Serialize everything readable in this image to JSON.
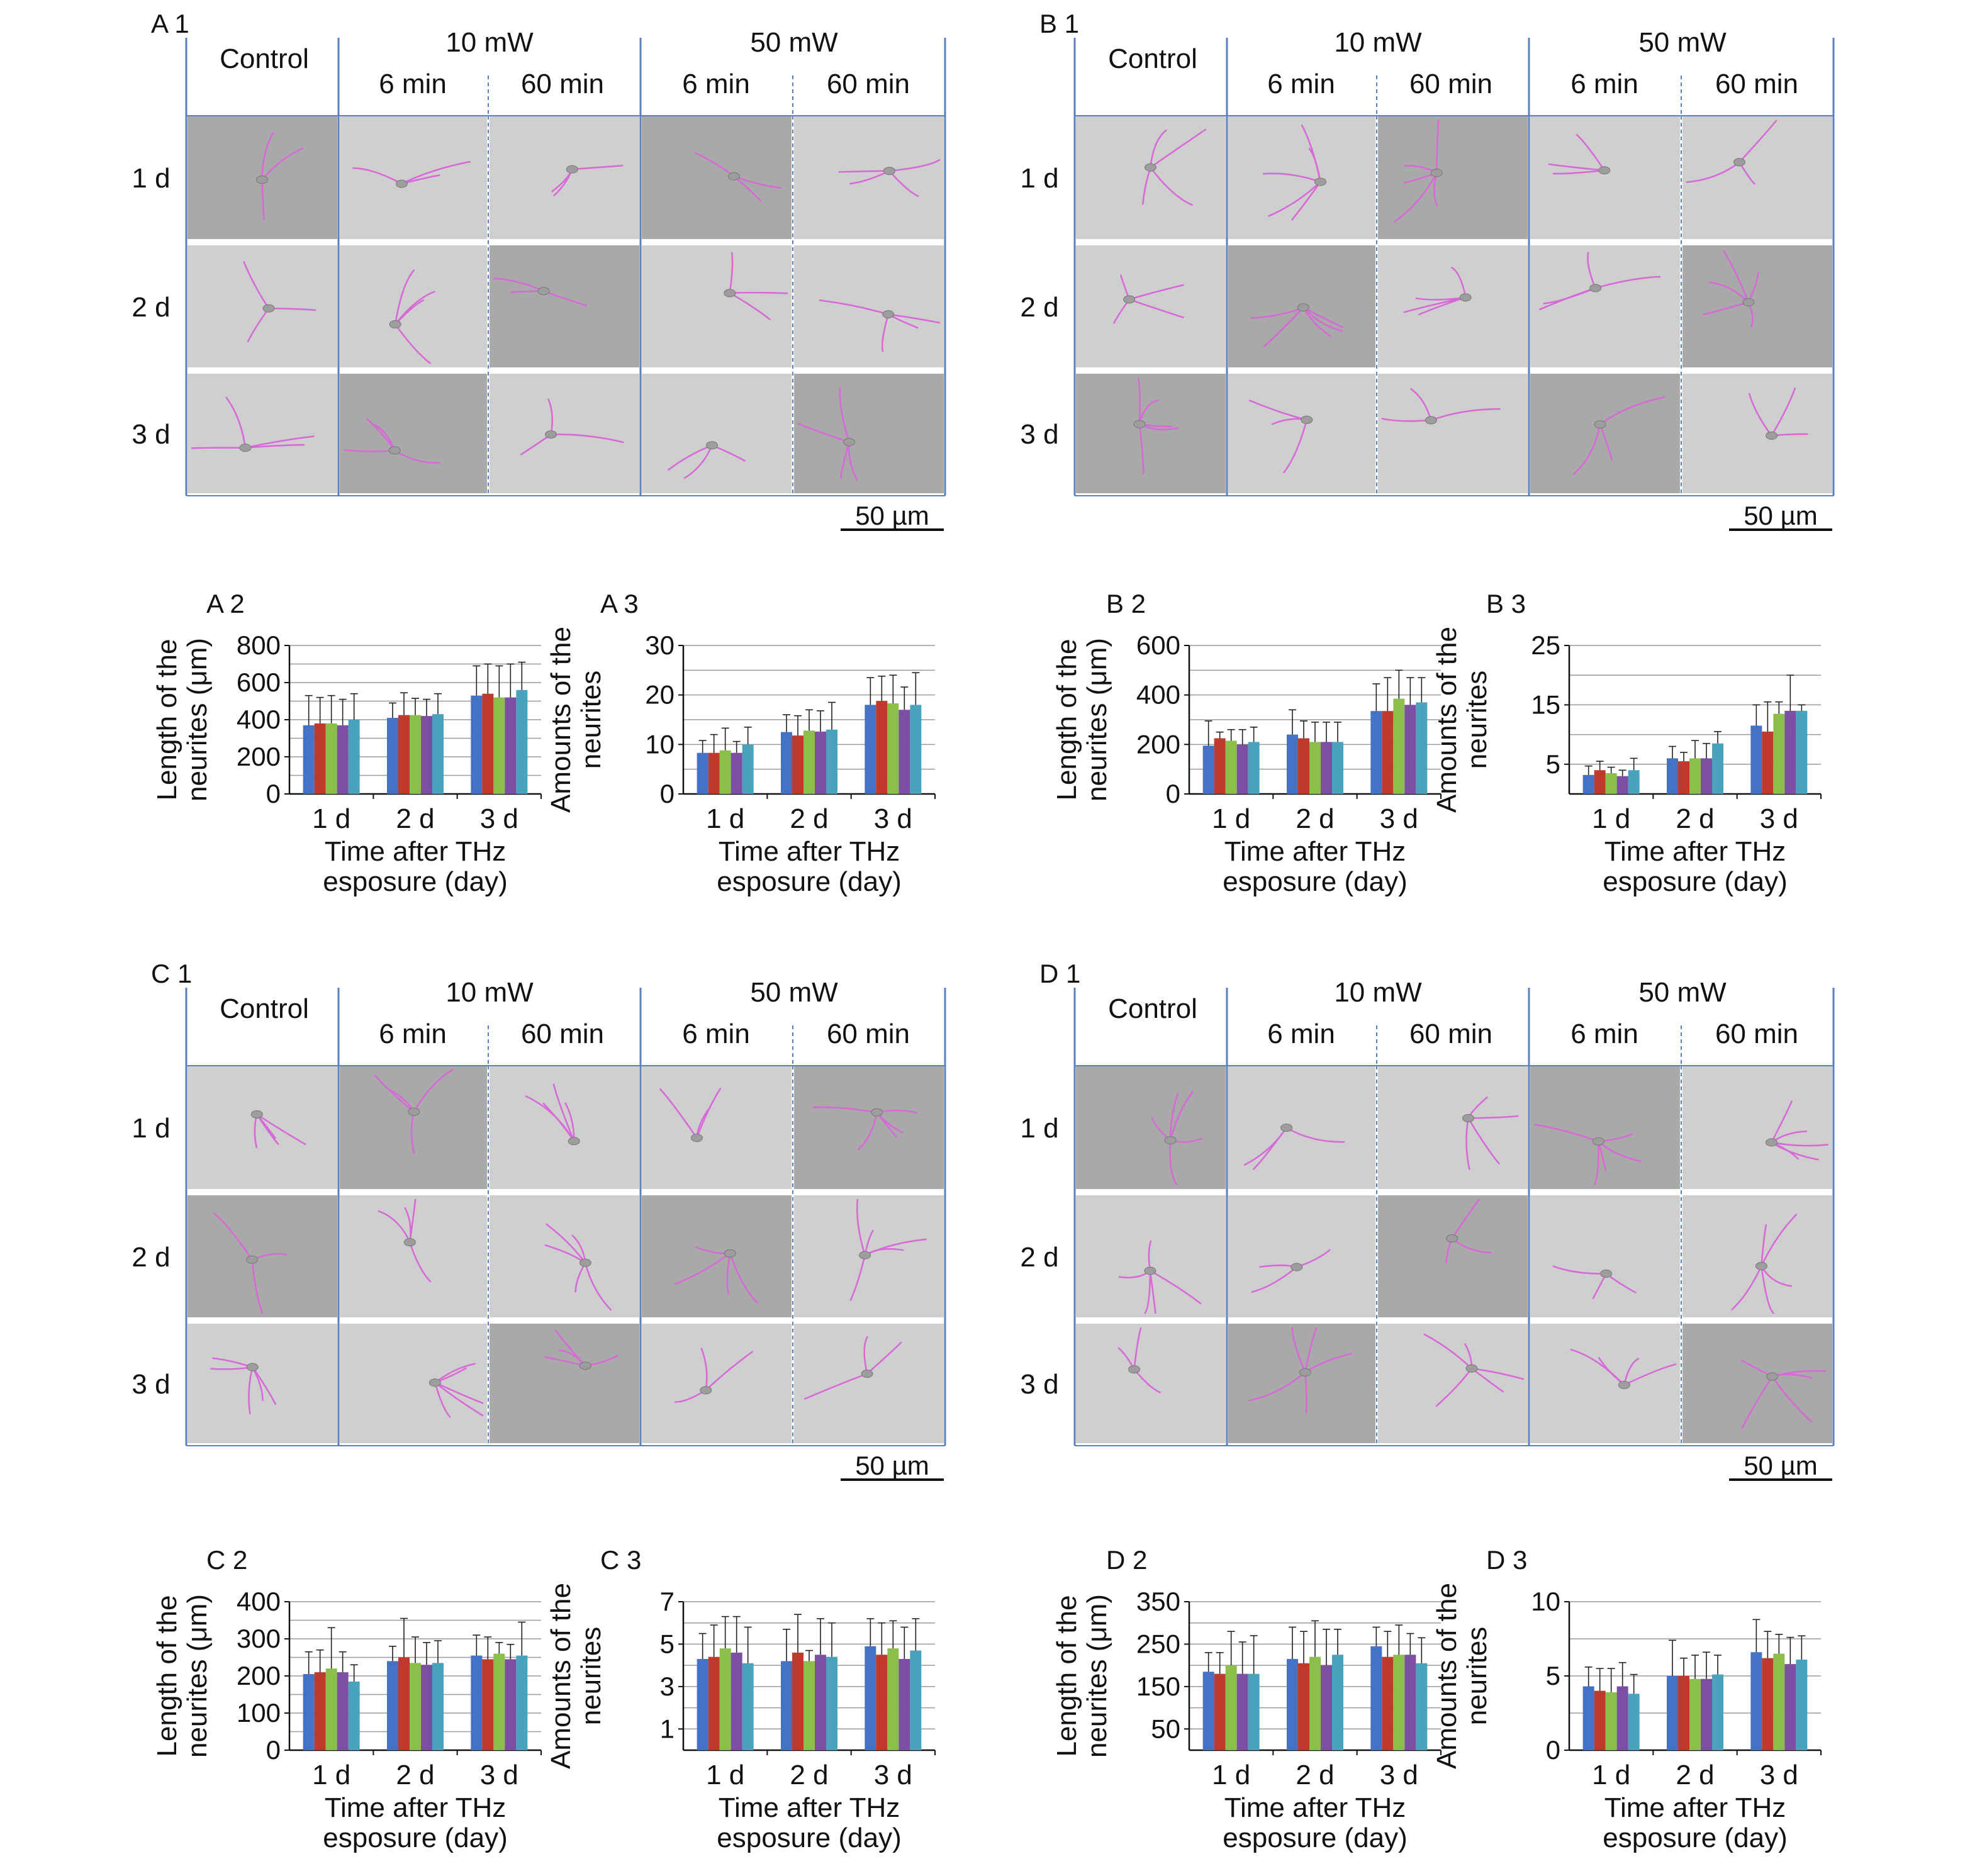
{
  "colors": {
    "series": [
      "#4472c4",
      "#c0392b",
      "#8cbf4a",
      "#7b4fa3",
      "#4aa3bd"
    ],
    "panel_frame": "#5b7fbf",
    "micrograph_light": "#cfcfcf",
    "micrograph_dark": "#a9a9a9",
    "neurite": "#d867d8",
    "grid": "#9a9a9a"
  },
  "micrograph_panels": [
    {
      "label": "A 1",
      "col_control": "Control",
      "group_10": "10 mW",
      "group_50": "50 mW",
      "sub": [
        "6 min",
        "60 min",
        "6 min",
        "60 min"
      ],
      "rows": [
        "1 d",
        "2 d",
        "3 d"
      ],
      "scale_bar": "50 µm"
    },
    {
      "label": "B 1",
      "col_control": "Control",
      "group_10": "10 mW",
      "group_50": "50 mW",
      "sub": [
        "6 min",
        "60 min",
        "6 min",
        "60 min"
      ],
      "rows": [
        "1 d",
        "2 d",
        "3 d"
      ],
      "scale_bar": "50 µm"
    },
    {
      "label": "C 1",
      "col_control": "Control",
      "group_10": "10 mW",
      "group_50": "50 mW",
      "sub": [
        "6 min",
        "60 min",
        "6 min",
        "60 min"
      ],
      "rows": [
        "1 d",
        "2 d",
        "3 d"
      ],
      "scale_bar": "50 µm"
    },
    {
      "label": "D 1",
      "col_control": "Control",
      "group_10": "10 mW",
      "group_50": "50 mW",
      "sub": [
        "6 min",
        "60 min",
        "6 min",
        "60 min"
      ],
      "rows": [
        "1 d",
        "2 d",
        "3 d"
      ],
      "scale_bar": "50 µm"
    }
  ],
  "chart_data": [
    {
      "type": "bar",
      "panel": "A 2",
      "ylabel_lines": [
        "Length of the",
        "neurites (μm)"
      ],
      "xlabel_lines": [
        "Time after THz",
        "esposure (day)"
      ],
      "categories": [
        "1 d",
        "2 d",
        "3 d"
      ],
      "ylim": [
        0,
        800
      ],
      "yticks": [
        "0",
        "200",
        "400",
        "600",
        "800"
      ],
      "grid": true,
      "series": [
        {
          "values": [
            370,
            410,
            530
          ],
          "errors": [
            160,
            80,
            160
          ]
        },
        {
          "values": [
            380,
            425,
            540
          ],
          "errors": [
            140,
            120,
            160
          ]
        },
        {
          "values": [
            380,
            425,
            520
          ],
          "errors": [
            150,
            90,
            170
          ]
        },
        {
          "values": [
            370,
            420,
            520
          ],
          "errors": [
            140,
            90,
            180
          ]
        },
        {
          "values": [
            400,
            430,
            560
          ],
          "errors": [
            140,
            110,
            150
          ]
        }
      ]
    },
    {
      "type": "bar",
      "panel": "A 3",
      "ylabel_lines": [
        "Amounts of the",
        "neurites"
      ],
      "xlabel_lines": [
        "Time after THz",
        "esposure (day)"
      ],
      "categories": [
        "1 d",
        "2 d",
        "3 d"
      ],
      "ylim": [
        0,
        30
      ],
      "yticks": [
        "0",
        "10",
        "20",
        "30"
      ],
      "grid": true,
      "series": [
        {
          "values": [
            8.3,
            12.5,
            18.0
          ],
          "errors": [
            2.5,
            3.5,
            5.5
          ]
        },
        {
          "values": [
            8.3,
            11.8,
            18.8
          ],
          "errors": [
            3.7,
            4.0,
            5.0
          ]
        },
        {
          "values": [
            8.8,
            12.8,
            18.3
          ],
          "errors": [
            4.5,
            4.2,
            5.7
          ]
        },
        {
          "values": [
            8.3,
            12.6,
            17.0
          ],
          "errors": [
            2.3,
            4.2,
            4.6
          ]
        },
        {
          "values": [
            10.0,
            13.0,
            18.0
          ],
          "errors": [
            3.5,
            5.5,
            6.5
          ]
        }
      ]
    },
    {
      "type": "bar",
      "panel": "B 2",
      "ylabel_lines": [
        "Length of the",
        "neurites (μm)"
      ],
      "xlabel_lines": [
        "Time after THz",
        "esposure (day)"
      ],
      "categories": [
        "1 d",
        "2 d",
        "3 d"
      ],
      "ylim": [
        0,
        600
      ],
      "yticks": [
        "0",
        "200",
        "400",
        "600"
      ],
      "grid": true,
      "series": [
        {
          "values": [
            195,
            240,
            335
          ],
          "errors": [
            100,
            100,
            110
          ]
        },
        {
          "values": [
            225,
            225,
            335
          ],
          "errors": [
            25,
            70,
            135
          ]
        },
        {
          "values": [
            215,
            210,
            385
          ],
          "errors": [
            45,
            80,
            115
          ]
        },
        {
          "values": [
            200,
            210,
            360
          ],
          "errors": [
            60,
            80,
            110
          ]
        },
        {
          "values": [
            210,
            210,
            370
          ],
          "errors": [
            60,
            80,
            100
          ]
        }
      ]
    },
    {
      "type": "bar",
      "panel": "B 3",
      "ylabel_lines": [
        "Amounts of the",
        "neurites"
      ],
      "xlabel_lines": [
        "Time after THz",
        "esposure (day)"
      ],
      "categories": [
        "1 d",
        "2 d",
        "3 d"
      ],
      "ylim": [
        0,
        25
      ],
      "yticks": [
        "5",
        "15",
        "25"
      ],
      "ytick_values": [
        5,
        15,
        25
      ],
      "grid": true,
      "series": [
        {
          "values": [
            3.2,
            6.0,
            11.5
          ],
          "errors": [
            1.5,
            2.0,
            3.5
          ]
        },
        {
          "values": [
            4.0,
            5.5,
            10.5
          ],
          "errors": [
            1.5,
            1.5,
            5.0
          ]
        },
        {
          "values": [
            3.5,
            6.0,
            13.5
          ],
          "errors": [
            1.0,
            3.0,
            2.0
          ]
        },
        {
          "values": [
            3.0,
            6.0,
            14.0
          ],
          "errors": [
            1.0,
            2.5,
            6.0
          ]
        },
        {
          "values": [
            4.0,
            8.5,
            14.0
          ],
          "errors": [
            2.0,
            2.0,
            1.0
          ]
        }
      ]
    },
    {
      "type": "bar",
      "panel": "C 2",
      "ylabel_lines": [
        "Length of the",
        "neurites (μm)"
      ],
      "xlabel_lines": [
        "Time after THz",
        "esposure (day)"
      ],
      "categories": [
        "1 d",
        "2 d",
        "3 d"
      ],
      "ylim": [
        0,
        400
      ],
      "yticks": [
        "0",
        "100",
        "200",
        "300",
        "400"
      ],
      "grid": true,
      "series": [
        {
          "values": [
            205,
            240,
            255
          ],
          "errors": [
            60,
            40,
            55
          ]
        },
        {
          "values": [
            210,
            250,
            245
          ],
          "errors": [
            60,
            105,
            60
          ]
        },
        {
          "values": [
            220,
            235,
            260
          ],
          "errors": [
            110,
            70,
            30
          ]
        },
        {
          "values": [
            210,
            230,
            245
          ],
          "errors": [
            55,
            60,
            40
          ]
        },
        {
          "values": [
            185,
            235,
            255
          ],
          "errors": [
            45,
            60,
            90
          ]
        }
      ]
    },
    {
      "type": "bar",
      "panel": "C 3",
      "ylabel_lines": [
        "Amounts of the",
        "neurites"
      ],
      "xlabel_lines": [
        "Time after THz",
        "esposure (day)"
      ],
      "categories": [
        "1 d",
        "2 d",
        "3 d"
      ],
      "ylim": [
        0,
        7
      ],
      "yticks": [
        "1",
        "3",
        "5",
        "7"
      ],
      "ytick_values": [
        1,
        3,
        5,
        7
      ],
      "grid": true,
      "series": [
        {
          "values": [
            4.3,
            4.2,
            4.9
          ],
          "errors": [
            1.2,
            1.5,
            1.3
          ]
        },
        {
          "values": [
            4.4,
            4.6,
            4.5
          ],
          "errors": [
            1.5,
            1.8,
            1.5
          ]
        },
        {
          "values": [
            4.8,
            4.2,
            4.8
          ],
          "errors": [
            1.5,
            0.5,
            1.3
          ]
        },
        {
          "values": [
            4.6,
            4.5,
            4.3
          ],
          "errors": [
            1.7,
            1.7,
            1.5
          ]
        },
        {
          "values": [
            4.1,
            4.4,
            4.7
          ],
          "errors": [
            1.7,
            1.6,
            1.5
          ]
        }
      ]
    },
    {
      "type": "bar",
      "panel": "D 2",
      "ylabel_lines": [
        "Length of the",
        "neurites (μm)"
      ],
      "xlabel_lines": [
        "Time after THz",
        "esposure (day)"
      ],
      "categories": [
        "1 d",
        "2 d",
        "3 d"
      ],
      "ylim": [
        0,
        350
      ],
      "yticks": [
        "50",
        "150",
        "250",
        "350"
      ],
      "ytick_values": [
        50,
        150,
        250,
        350
      ],
      "grid": true,
      "series": [
        {
          "values": [
            185,
            215,
            245
          ],
          "errors": [
            45,
            75,
            45
          ]
        },
        {
          "values": [
            180,
            205,
            220
          ],
          "errors": [
            50,
            75,
            60
          ]
        },
        {
          "values": [
            200,
            220,
            225
          ],
          "errors": [
            80,
            85,
            70
          ]
        },
        {
          "values": [
            180,
            200,
            225
          ],
          "errors": [
            75,
            85,
            50
          ]
        },
        {
          "values": [
            180,
            225,
            205
          ],
          "errors": [
            90,
            60,
            60
          ]
        }
      ]
    },
    {
      "type": "bar",
      "panel": "D 3",
      "ylabel_lines": [
        "Amounts of the",
        "neurites"
      ],
      "xlabel_lines": [
        "Time after THz",
        "esposure (day)"
      ],
      "categories": [
        "1 d",
        "2 d",
        "3 d"
      ],
      "ylim": [
        0,
        10
      ],
      "yticks": [
        "0",
        "5",
        "10"
      ],
      "ytick_values": [
        0,
        5,
        10
      ],
      "grid": true,
      "series": [
        {
          "values": [
            4.3,
            5.0,
            6.6
          ],
          "errors": [
            1.3,
            2.4,
            2.2
          ]
        },
        {
          "values": [
            4.0,
            5.0,
            6.2
          ],
          "errors": [
            1.5,
            1.2,
            1.8
          ]
        },
        {
          "values": [
            3.9,
            4.8,
            6.5
          ],
          "errors": [
            1.6,
            1.6,
            1.3
          ]
        },
        {
          "values": [
            4.3,
            4.8,
            5.8
          ],
          "errors": [
            1.6,
            1.8,
            1.8
          ]
        },
        {
          "values": [
            3.8,
            5.1,
            6.1
          ],
          "errors": [
            1.3,
            1.3,
            1.6
          ]
        }
      ]
    }
  ]
}
